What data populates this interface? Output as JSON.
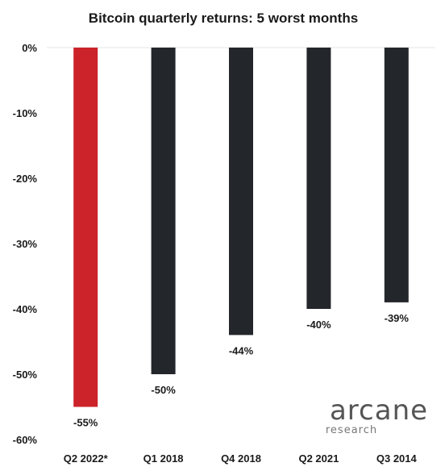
{
  "chart_data": {
    "type": "bar",
    "title": "Bitcoin quarterly returns: 5 worst months",
    "categories": [
      "Q2 2022*",
      "Q1 2018",
      "Q4 2018",
      "Q2 2021",
      "Q3 2014"
    ],
    "values": [
      -55,
      -50,
      -44,
      -40,
      -39
    ],
    "value_labels": [
      "-55%",
      "-50%",
      "-44%",
      "-40%",
      "-39%"
    ],
    "colors": [
      "#cc2229",
      "#23262b",
      "#23262b",
      "#23262b",
      "#23262b"
    ],
    "ylim": [
      -60,
      0
    ],
    "yticks": [
      0,
      -10,
      -20,
      -30,
      -40,
      -50,
      -60
    ],
    "ytick_labels": [
      "0%",
      "-10%",
      "-20%",
      "-30%",
      "-40%",
      "-50%",
      "-60%"
    ],
    "xlabel": "",
    "ylabel": "",
    "grid": true,
    "legend": "none"
  },
  "branding": {
    "logo_main": "arcane",
    "logo_sub": "research"
  }
}
